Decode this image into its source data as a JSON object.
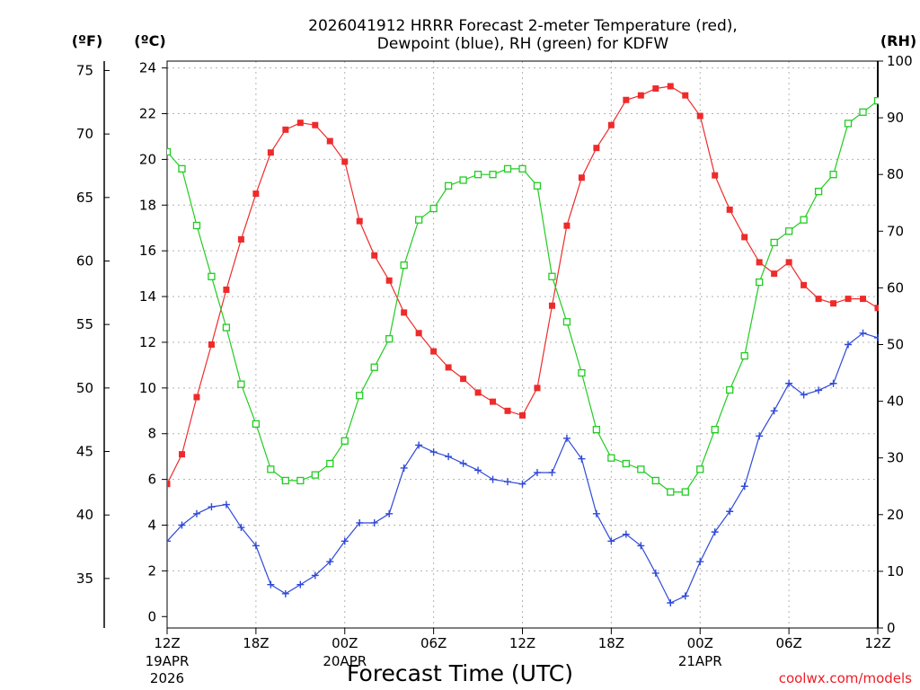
{
  "chart_data": {
    "type": "line",
    "title": "2026041912 HRRR Forecast 2-meter Temperature (red),",
    "subtitle": "Dewpoint (blue), RH (green) for KDFW",
    "xlabel": "Forecast Time (UTC)",
    "credit": "coolwx.com/models",
    "units": {
      "fahrenheit": "(ºF)",
      "celsius": "(ºC)",
      "rh": "(RH)"
    },
    "x": [
      0,
      1,
      2,
      3,
      4,
      5,
      6,
      7,
      8,
      9,
      10,
      11,
      12,
      13,
      14,
      15,
      16,
      17,
      18,
      19,
      20,
      21,
      22,
      23,
      24,
      25,
      26,
      27,
      28,
      29,
      30,
      31,
      32,
      33,
      34,
      35,
      36,
      37,
      38,
      39,
      40,
      41,
      42,
      43,
      44,
      45,
      46,
      47,
      48
    ],
    "xlim": [
      0,
      48
    ],
    "x_ticks": [
      {
        "x": 0,
        "label": "12Z",
        "date": "19APR",
        "year": "2026"
      },
      {
        "x": 6,
        "label": "18Z",
        "date": "",
        "year": ""
      },
      {
        "x": 12,
        "label": "00Z",
        "date": "20APR",
        "year": ""
      },
      {
        "x": 18,
        "label": "06Z",
        "date": "",
        "year": ""
      },
      {
        "x": 24,
        "label": "12Z",
        "date": "",
        "year": ""
      },
      {
        "x": 30,
        "label": "18Z",
        "date": "",
        "year": ""
      },
      {
        "x": 36,
        "label": "00Z",
        "date": "21APR",
        "year": ""
      },
      {
        "x": 42,
        "label": "06Z",
        "date": "",
        "year": ""
      },
      {
        "x": 48,
        "label": "12Z",
        "date": "",
        "year": ""
      }
    ],
    "y_celsius_ticks": [
      "0",
      "2",
      "4",
      "6",
      "8",
      "10",
      "12",
      "14",
      "16",
      "18",
      "20",
      "22",
      "24"
    ],
    "ylim_celsius": [
      -0.5,
      24.3
    ],
    "y_fahrenheit_ticks": [
      "35",
      "40",
      "45",
      "50",
      "55",
      "60",
      "65",
      "70",
      "75"
    ],
    "y_rh_ticks": [
      "0",
      "10",
      "20",
      "30",
      "40",
      "50",
      "60",
      "70",
      "80",
      "90",
      "100"
    ],
    "ylim_rh": [
      0,
      100
    ],
    "grid": true,
    "series": [
      {
        "name": "Temperature",
        "axis": "celsius",
        "color": "#ee2b2b",
        "marker": "filled-square",
        "values": [
          5.8,
          7.1,
          9.6,
          11.9,
          14.3,
          16.5,
          18.5,
          20.3,
          21.3,
          21.6,
          21.5,
          20.8,
          19.9,
          17.3,
          15.8,
          14.7,
          13.3,
          12.4,
          11.6,
          10.9,
          10.4,
          9.8,
          9.4,
          9.0,
          8.8,
          10.0,
          13.6,
          17.1,
          19.2,
          20.5,
          21.5,
          22.6,
          22.8,
          23.1,
          23.2,
          22.8,
          21.9,
          19.3,
          17.8,
          16.6,
          15.5,
          15.0,
          15.5,
          14.5,
          13.9,
          13.7,
          13.9,
          13.9,
          13.5
        ]
      },
      {
        "name": "Dewpoint",
        "axis": "celsius",
        "color": "#2f49d9",
        "marker": "plus",
        "values": [
          3.3,
          4.0,
          4.5,
          4.8,
          4.9,
          3.9,
          3.1,
          1.4,
          1.0,
          1.4,
          1.8,
          2.4,
          3.3,
          4.1,
          4.1,
          4.5,
          6.5,
          7.5,
          7.2,
          7.0,
          6.7,
          6.4,
          6.0,
          5.9,
          5.8,
          6.3,
          6.3,
          7.8,
          6.9,
          4.5,
          3.3,
          3.6,
          3.1,
          1.9,
          0.6,
          0.9,
          2.4,
          3.7,
          4.6,
          5.7,
          7.9,
          9.0,
          10.2,
          9.7,
          9.9,
          10.2,
          11.9,
          12.4,
          12.2
        ]
      },
      {
        "name": "RH",
        "axis": "rh",
        "color": "#22cc22",
        "marker": "open-square",
        "values": [
          84,
          81,
          71,
          62,
          53,
          43,
          36,
          28,
          26,
          26,
          27,
          29,
          33,
          41,
          46,
          51,
          64,
          72,
          74,
          78,
          79,
          80,
          80,
          81,
          81,
          78,
          62,
          54,
          45,
          35,
          30,
          29,
          28,
          26,
          24,
          24,
          28,
          35,
          42,
          48,
          61,
          68,
          70,
          72,
          77,
          80,
          89,
          91,
          93
        ]
      }
    ]
  }
}
